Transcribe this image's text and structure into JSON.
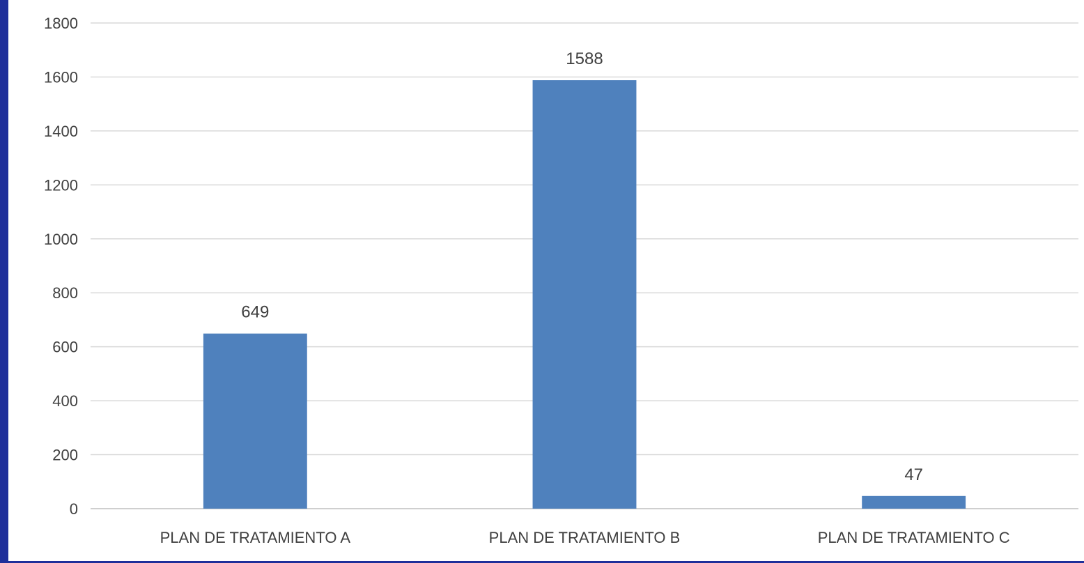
{
  "chart_data": {
    "type": "bar",
    "title": "",
    "xlabel": "",
    "ylabel": "",
    "categories": [
      "PLAN DE TRATAMIENTO A",
      "PLAN DE TRATAMIENTO B",
      "PLAN DE TRATAMIENTO C"
    ],
    "values": [
      649,
      1588,
      47
    ],
    "value_labels": [
      "649",
      "1588",
      "47"
    ],
    "yticks": [
      "0",
      "200",
      "400",
      "600",
      "800",
      "1000",
      "1200",
      "1400",
      "1600",
      "1800"
    ],
    "ylim": [
      0,
      1800
    ],
    "grid": true,
    "legend": "none",
    "colors": {
      "bar": "#4f81bd",
      "frame": "#1f2f9a",
      "gridline": "#d9d9d9",
      "text": "#404040"
    }
  }
}
